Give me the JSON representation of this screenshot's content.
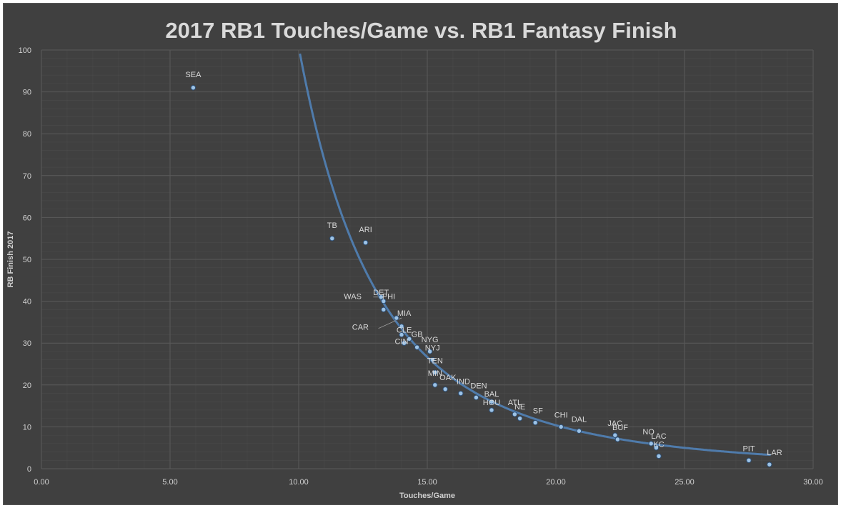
{
  "chart_data": {
    "type": "scatter",
    "title": "2017 RB1 Touches/Game vs. RB1 Fantasy Finish",
    "xlabel": "Touches/Game",
    "ylabel": "RB Finish 2017",
    "xlim": [
      0,
      30
    ],
    "ylim": [
      0,
      100
    ],
    "x_ticks": [
      "0.00",
      "5.00",
      "10.00",
      "15.00",
      "20.00",
      "25.00",
      "30.00"
    ],
    "y_ticks": [
      "0",
      "10",
      "20",
      "30",
      "40",
      "50",
      "60",
      "70",
      "80",
      "90",
      "100"
    ],
    "grid": true,
    "trendline": {
      "type": "power",
      "coefficient": 192000,
      "exponent": -3.28
    },
    "colors": {
      "background": "#404040",
      "point": "#9dc3e6",
      "trendline": "#4f7bab",
      "grid": "#5a5a5a"
    },
    "points": [
      {
        "label": "SEA",
        "x": 5.9,
        "y": 91
      },
      {
        "label": "TB",
        "x": 11.3,
        "y": 55
      },
      {
        "label": "ARI",
        "x": 12.6,
        "y": 54
      },
      {
        "label": "DET",
        "x": 13.2,
        "y": 41
      },
      {
        "label": "PHI",
        "x": 13.3,
        "y": 40
      },
      {
        "label": "WAS",
        "x": 13.3,
        "y": 38
      },
      {
        "label": "MIA",
        "x": 13.8,
        "y": 36
      },
      {
        "label": "CAR",
        "x": 14.0,
        "y": 34
      },
      {
        "label": "CLE",
        "x": 14.0,
        "y": 32
      },
      {
        "label": "GB",
        "x": 14.3,
        "y": 31
      },
      {
        "label": "CIN",
        "x": 14.1,
        "y": 30
      },
      {
        "label": "NYG",
        "x": 14.6,
        "y": 29
      },
      {
        "label": "NYJ",
        "x": 15.1,
        "y": 28
      },
      {
        "label": "TEN",
        "x": 15.2,
        "y": 26
      },
      {
        "label": "MIN",
        "x": 15.3,
        "y": 23
      },
      {
        "label": "OAK",
        "x": 15.3,
        "y": 20
      },
      {
        "label": "IND",
        "x": 15.7,
        "y": 19
      },
      {
        "label": "DEN",
        "x": 16.3,
        "y": 18
      },
      {
        "label": "BAL",
        "x": 16.9,
        "y": 17
      },
      {
        "label": "HOU",
        "x": 17.5,
        "y": 16
      },
      {
        "label": "NE",
        "x": 17.5,
        "y": 14
      },
      {
        "label": "ATL",
        "x": 18.4,
        "y": 13
      },
      {
        "label": "SF",
        "x": 18.6,
        "y": 12
      },
      {
        "label": "CHI",
        "x": 19.2,
        "y": 11
      },
      {
        "label": "DAL",
        "x": 20.2,
        "y": 10
      },
      {
        "label": "JAC",
        "x": 20.9,
        "y": 9
      },
      {
        "label": "BUF",
        "x": 22.3,
        "y": 8
      },
      {
        "label": "NO",
        "x": 22.4,
        "y": 7
      },
      {
        "label": "LAC",
        "x": 23.7,
        "y": 6
      },
      {
        "label": "KC",
        "x": 23.9,
        "y": 5
      },
      {
        "label": "PIT",
        "x": 24.0,
        "y": 3
      },
      {
        "label": "LAR",
        "x": 27.5,
        "y": 2
      },
      {
        "label": "",
        "x": 28.3,
        "y": 1
      }
    ],
    "point_labels": [
      {
        "text": "SEA",
        "x": 5.9,
        "y": 93.5
      },
      {
        "text": "TB",
        "x": 11.3,
        "y": 57.5
      },
      {
        "text": "ARI",
        "x": 12.6,
        "y": 56.5
      },
      {
        "text": "WAS",
        "x": 12.1,
        "y": 40.5
      },
      {
        "text": "DET",
        "x": 13.2,
        "y": 41.5
      },
      {
        "text": "PHI",
        "x": 13.5,
        "y": 40.5
      },
      {
        "text": "MIA",
        "x": 14.1,
        "y": 36.5
      },
      {
        "text": "CAR",
        "x": 12.4,
        "y": 33.2
      },
      {
        "text": "CLE",
        "x": 14.1,
        "y": 32.5
      },
      {
        "text": "GB",
        "x": 14.6,
        "y": 31.5
      },
      {
        "text": "CIN",
        "x": 14.0,
        "y": 29.8
      },
      {
        "text": "NYG",
        "x": 15.1,
        "y": 30.2
      },
      {
        "text": "NYJ",
        "x": 15.2,
        "y": 28.2
      },
      {
        "text": "TEN",
        "x": 15.3,
        "y": 25.2
      },
      {
        "text": "MIN",
        "x": 15.3,
        "y": 22.2
      },
      {
        "text": "OAK",
        "x": 15.8,
        "y": 21.2
      },
      {
        "text": "IND",
        "x": 16.4,
        "y": 20.2
      },
      {
        "text": "DEN",
        "x": 17.0,
        "y": 19.2
      },
      {
        "text": "BAL",
        "x": 17.5,
        "y": 17.2
      },
      {
        "text": "HOU",
        "x": 17.5,
        "y": 15.2
      },
      {
        "text": "ATL",
        "x": 18.4,
        "y": 15.2
      },
      {
        "text": "NE",
        "x": 18.6,
        "y": 14.2
      },
      {
        "text": "SF",
        "x": 19.3,
        "y": 13.2
      },
      {
        "text": "CHI",
        "x": 20.2,
        "y": 12.2
      },
      {
        "text": "DAL",
        "x": 20.9,
        "y": 11.2
      },
      {
        "text": "JAC",
        "x": 22.3,
        "y": 10.2
      },
      {
        "text": "BUF",
        "x": 22.5,
        "y": 9.2
      },
      {
        "text": "NO",
        "x": 23.6,
        "y": 8.2
      },
      {
        "text": "LAC",
        "x": 24.0,
        "y": 7.2
      },
      {
        "text": "KC",
        "x": 24.0,
        "y": 5.2
      },
      {
        "text": "PIT",
        "x": 27.5,
        "y": 4.2
      },
      {
        "text": "LAR",
        "x": 28.5,
        "y": 3.2
      }
    ]
  }
}
